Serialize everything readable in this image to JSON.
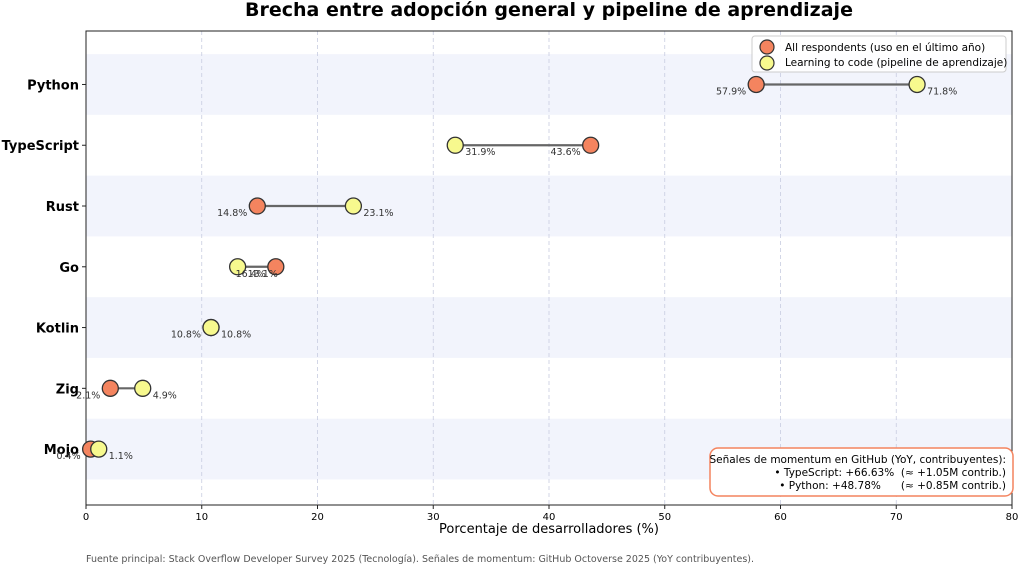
{
  "chart_data": {
    "type": "dumbbell",
    "title": "Brecha entre adopción general y pipeline de aprendizaje",
    "xlabel": "Porcentaje de desarrolladores (%)",
    "ylabel": "",
    "xlim": [
      0,
      80
    ],
    "xticks": [
      "0",
      "10",
      "20",
      "30",
      "40",
      "50",
      "60",
      "70",
      "80"
    ],
    "categories": [
      "Python",
      "TypeScript",
      "Rust",
      "Go",
      "Kotlin",
      "Zig",
      "Mojo"
    ],
    "series": [
      {
        "name": "All respondents (uso en el último año)",
        "color": "#f4845f",
        "values": [
          57.9,
          43.6,
          14.8,
          16.4,
          10.8,
          2.1,
          0.4
        ],
        "labels": [
          "57.9%",
          "43.6%",
          "14.8%",
          "16.4%",
          "10.8%",
          "2.1%",
          "0.4%"
        ]
      },
      {
        "name": "Learning to code (pipeline de aprendizaje)",
        "color": "#f7f98e",
        "values": [
          71.8,
          31.9,
          23.1,
          13.1,
          10.8,
          4.9,
          1.1
        ],
        "labels": [
          "71.8%",
          "31.9%",
          "23.1%",
          "13.1%",
          "10.8%",
          "4.9%",
          "1.1%"
        ]
      }
    ],
    "legend_position": "top-right",
    "annotation": {
      "title": "Señales de momentum en GitHub (YoY, contribuyentes):",
      "lines": [
        "• TypeScript: +66.63%  (≈ +1.05M contrib.)",
        "• Python: +48.78%      (≈ +0.85M contrib.)"
      ],
      "border_color": "#f4845f"
    },
    "source": "Fuente principal: Stack Overflow Developer Survey 2025 (Tecnología). Señales de momentum: GitHub Octoverse 2025 (YoY contribuyentes)."
  }
}
